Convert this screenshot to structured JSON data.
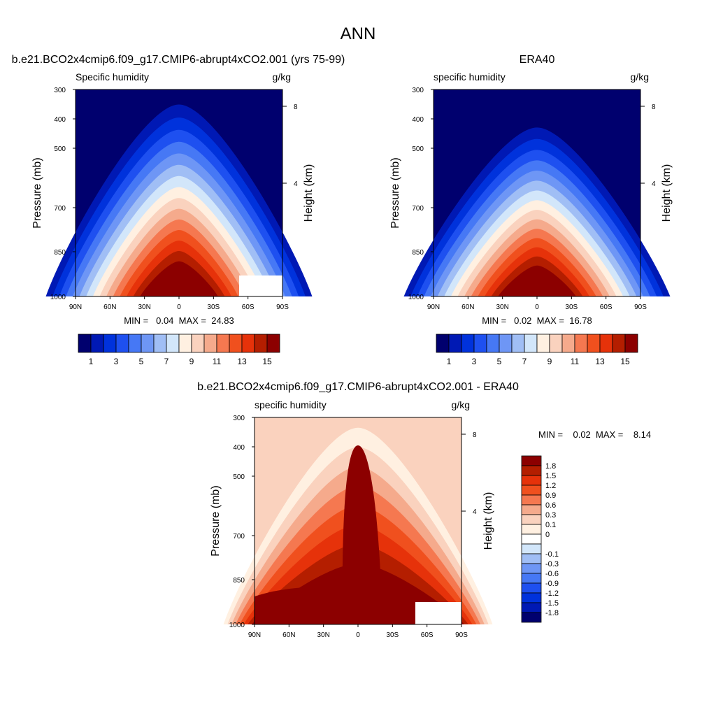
{
  "title": "ANN",
  "chart_data": [
    {
      "type": "heatmap",
      "title": "b.e21.BCO2x4cmip6.f09_g17.CMIP6-abrupt4xCO2.001 (yrs 75-99)",
      "subtitle_left": "Specific humidity",
      "subtitle_right": "g/kg",
      "ylabel": "Pressure (mb)",
      "ylabel_right": "Height (km)",
      "x_ticks": [
        "90N",
        "60N",
        "30N",
        "0",
        "30S",
        "60S",
        "90S"
      ],
      "y_ticks": [
        "300",
        "400",
        "500",
        "700",
        "850",
        "1000"
      ],
      "y_right_ticks": [
        "8",
        "4"
      ],
      "stats": "MIN =   0.04  MAX =  24.83",
      "colorbar": {
        "colors": [
          "#00006e",
          "#0019b4",
          "#0032dc",
          "#1e50f0",
          "#4678f5",
          "#6e96f5",
          "#a0bef5",
          "#d2e6fa",
          "#fff0e1",
          "#fad2be",
          "#f5aa8c",
          "#f57850",
          "#f0501e",
          "#e6320a",
          "#b41e00",
          "#8c0000"
        ],
        "labels": [
          "1",
          "3",
          "5",
          "7",
          "9",
          "11",
          "13",
          "15"
        ]
      },
      "peak_max": 24.83,
      "valley_min": 0.04
    },
    {
      "type": "heatmap",
      "title": "ERA40",
      "subtitle_left": "specific humidity",
      "subtitle_right": "g/kg",
      "ylabel": "Pressure (mb)",
      "ylabel_right": "Height (km)",
      "x_ticks": [
        "90N",
        "60N",
        "30N",
        "0",
        "30S",
        "60S",
        "90S"
      ],
      "y_ticks": [
        "300",
        "400",
        "500",
        "700",
        "850",
        "1000"
      ],
      "y_right_ticks": [
        "8",
        "4"
      ],
      "stats": "MIN =   0.02  MAX =  16.78",
      "colorbar": {
        "colors": [
          "#00006e",
          "#0019b4",
          "#0032dc",
          "#1e50f0",
          "#4678f5",
          "#6e96f5",
          "#a0bef5",
          "#d2e6fa",
          "#fff0e1",
          "#fad2be",
          "#f5aa8c",
          "#f57850",
          "#f0501e",
          "#e6320a",
          "#b41e00",
          "#8c0000"
        ],
        "labels": [
          "1",
          "3",
          "5",
          "7",
          "9",
          "11",
          "13",
          "15"
        ]
      },
      "peak_max": 16.78,
      "valley_min": 0.02
    },
    {
      "type": "heatmap",
      "title": "b.e21.BCO2x4cmip6.f09_g17.CMIP6-abrupt4xCO2.001 - ERA40",
      "subtitle_left": "specific humidity",
      "subtitle_right": "g/kg",
      "ylabel": "Pressure (mb)",
      "ylabel_right": "Height (km)",
      "x_ticks": [
        "90N",
        "60N",
        "30N",
        "0",
        "30S",
        "60S",
        "90S"
      ],
      "y_ticks": [
        "300",
        "400",
        "500",
        "700",
        "850",
        "1000"
      ],
      "y_right_ticks": [
        "8",
        "4"
      ],
      "stats": "MIN =    0.02  MAX =    8.14",
      "colorbar": {
        "colors": [
          "#8c0000",
          "#b41e00",
          "#e6320a",
          "#f0501e",
          "#f57850",
          "#f5aa8c",
          "#fad2be",
          "#fff0e1",
          "#ffffff",
          "#d2e6fa",
          "#a0bef5",
          "#6e96f5",
          "#4678f5",
          "#1e50f0",
          "#0032dc",
          "#0019b4",
          "#00006e"
        ],
        "labels": [
          "1.8",
          "1.5",
          "1.2",
          "0.9",
          "0.6",
          "0.3",
          "0.1",
          "0",
          "-0.1",
          "-0.3",
          "-0.6",
          "-0.9",
          "-1.2",
          "-1.5",
          "-1.8"
        ]
      },
      "peak_max": 8.14,
      "valley_min": 0.02
    }
  ]
}
